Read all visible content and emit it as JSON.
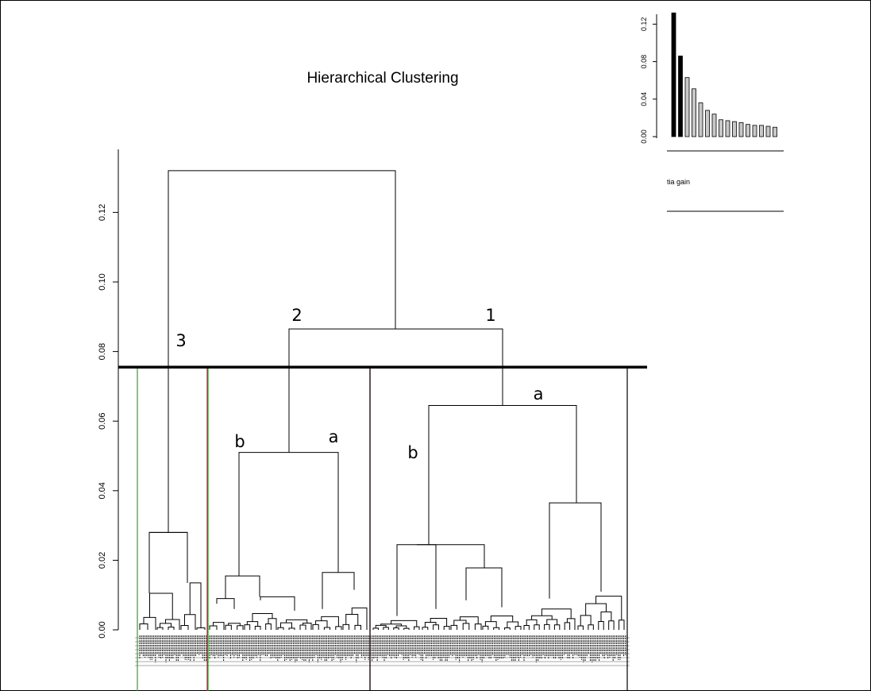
{
  "chart_data": [
    {
      "type": "dendrogram",
      "title": "Hierarchical Clustering",
      "y_ticks": [
        "0.00",
        "0.02",
        "0.04",
        "0.06",
        "0.08",
        "0.10",
        "0.12"
      ],
      "y_tick_values": [
        0,
        0.02,
        0.04,
        0.06,
        0.08,
        0.1,
        0.12
      ],
      "ylim": [
        0,
        0.132
      ],
      "cut_height": 0.0755,
      "cluster_labels": [
        "3",
        "2",
        "1",
        "b",
        "a",
        "b",
        "a"
      ],
      "merge_heights": {
        "root": 0.132,
        "clusters_1_2": 0.0865,
        "cluster_1": 0.0645,
        "cluster_2": 0.051,
        "cluster_3": 0.028,
        "c1_b": 0.0245,
        "c1_a": 0.0365,
        "c2_b": 0.0155,
        "c2_a": 0.0165
      },
      "colors": {
        "cluster_3_box": "#2ca02c",
        "cluster_2_box": "#b22222",
        "cluster_1_box": "#000000",
        "cut_line": "#000000"
      }
    },
    {
      "type": "bar",
      "y_ticks": [
        "0.00",
        "0.04",
        "0.08",
        "0.12"
      ],
      "ylim": [
        0,
        0.132
      ],
      "values": [
        0.132,
        0.086,
        0.063,
        0.051,
        0.036,
        0.028,
        0.024,
        0.018,
        0.017,
        0.016,
        0.015,
        0.013,
        0.012,
        0.012,
        0.011,
        0.01
      ],
      "highlighted_count": 2,
      "xlabel": "tia gain",
      "colors": {
        "highlight": "#000000",
        "other": "#c8c8c8"
      }
    }
  ]
}
